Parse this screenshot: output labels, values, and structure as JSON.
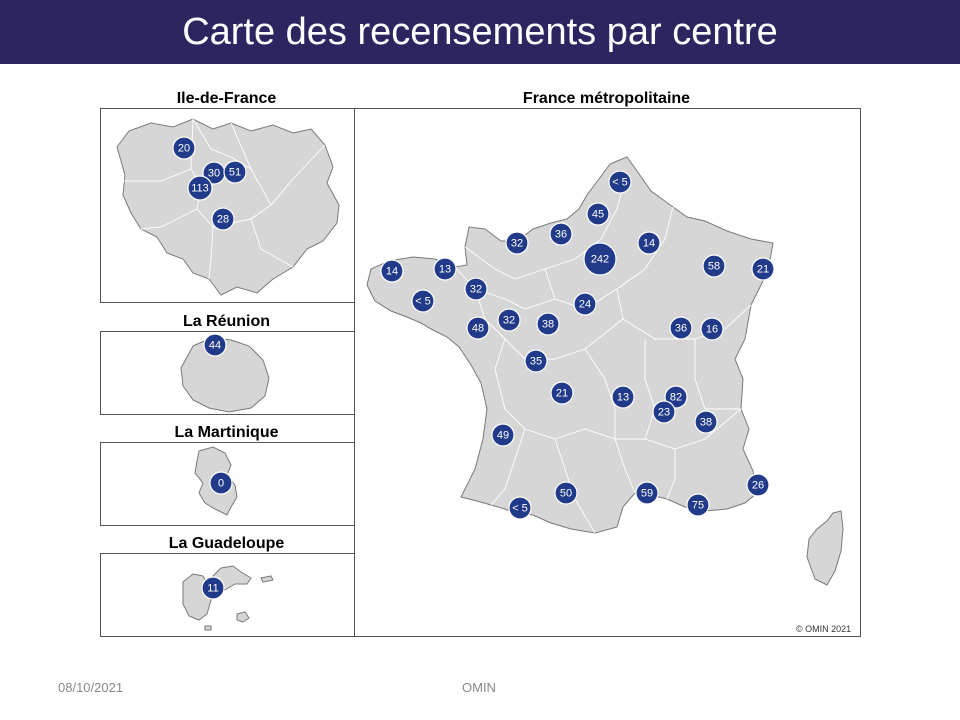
{
  "title": "Carte des recensements par centre",
  "panels": {
    "idf": {
      "label": "Ile-de-France"
    },
    "metro": {
      "label": "France métropolitaine"
    },
    "reunion": {
      "label": "La Réunion"
    },
    "martinique": {
      "label": "La Martinique"
    },
    "guadeloupe": {
      "label": "La Guadeloupe"
    }
  },
  "copyright": "© OMIN 2021",
  "footer": {
    "date": "08/10/2021",
    "center": "OMIN"
  },
  "colors": {
    "title_bar": "#2b2660",
    "bubble": "#223a8a",
    "land": "#d6d6d6"
  },
  "centers": {
    "idf": [
      "20",
      "30",
      "51",
      "113",
      "28"
    ],
    "reunion": [
      "44"
    ],
    "martinique": [
      "0"
    ],
    "guadeloupe": [
      "11"
    ],
    "metro": [
      "< 5",
      "45",
      "36",
      "32",
      "14",
      "242",
      "58",
      "21",
      "14",
      "13",
      "< 5",
      "32",
      "24",
      "48",
      "32",
      "38",
      "36",
      "16",
      "35",
      "21",
      "13",
      "82",
      "23",
      "38",
      "49",
      "50",
      "59",
      "75",
      "< 5",
      "26"
    ]
  }
}
